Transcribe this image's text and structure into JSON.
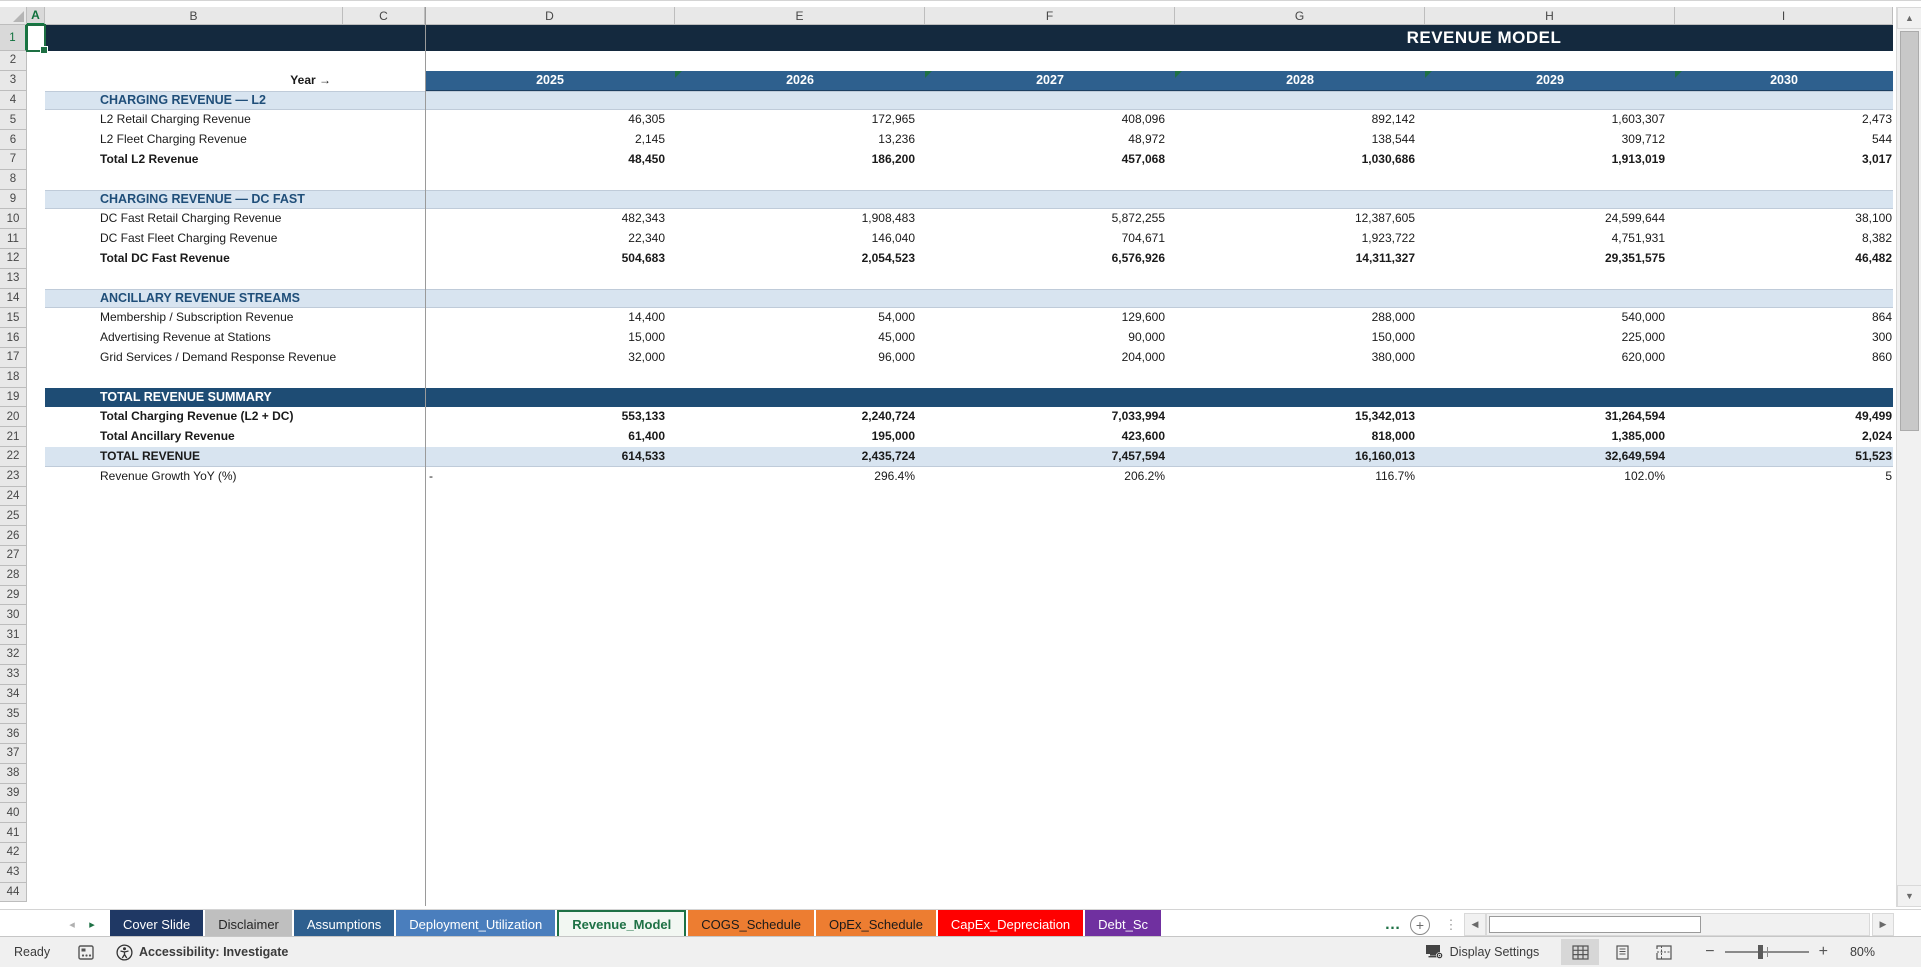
{
  "sheet": {
    "title": "REVENUE MODEL",
    "year_arrow_label": "Year →",
    "column_letters": [
      "A",
      "B",
      "C",
      "D",
      "E",
      "F",
      "G",
      "H",
      "I"
    ],
    "years": [
      "2025",
      "2026",
      "2027",
      "2028",
      "2029",
      "2030"
    ],
    "row_count": 44,
    "selected_cell": "A1",
    "rows": [
      {
        "n": 1,
        "type": "title"
      },
      {
        "n": 3,
        "type": "years"
      },
      {
        "n": 4,
        "type": "section",
        "label": "CHARGING REVENUE — L2"
      },
      {
        "n": 5,
        "type": "data",
        "label": "L2 Retail Charging Revenue",
        "values": [
          "46,305",
          "172,965",
          "408,096",
          "892,142",
          "1,603,307",
          "2,473"
        ]
      },
      {
        "n": 6,
        "type": "data",
        "label": "L2 Fleet Charging Revenue",
        "values": [
          "2,145",
          "13,236",
          "48,972",
          "138,544",
          "309,712",
          "544"
        ]
      },
      {
        "n": 7,
        "type": "total",
        "label": "Total L2 Revenue",
        "values": [
          "48,450",
          "186,200",
          "457,068",
          "1,030,686",
          "1,913,019",
          "3,017"
        ]
      },
      {
        "n": 9,
        "type": "section",
        "label": "CHARGING REVENUE — DC FAST"
      },
      {
        "n": 10,
        "type": "data",
        "label": "DC Fast Retail Charging Revenue",
        "values": [
          "482,343",
          "1,908,483",
          "5,872,255",
          "12,387,605",
          "24,599,644",
          "38,100"
        ]
      },
      {
        "n": 11,
        "type": "data",
        "label": "DC Fast Fleet Charging Revenue",
        "values": [
          "22,340",
          "146,040",
          "704,671",
          "1,923,722",
          "4,751,931",
          "8,382"
        ]
      },
      {
        "n": 12,
        "type": "total",
        "label": "Total DC Fast Revenue",
        "values": [
          "504,683",
          "2,054,523",
          "6,576,926",
          "14,311,327",
          "29,351,575",
          "46,482"
        ]
      },
      {
        "n": 14,
        "type": "section",
        "label": "ANCILLARY REVENUE STREAMS"
      },
      {
        "n": 15,
        "type": "data",
        "label": "Membership / Subscription Revenue",
        "values": [
          "14,400",
          "54,000",
          "129,600",
          "288,000",
          "540,000",
          "864"
        ]
      },
      {
        "n": 16,
        "type": "data",
        "label": "Advertising Revenue at Stations",
        "values": [
          "15,000",
          "45,000",
          "90,000",
          "150,000",
          "225,000",
          "300"
        ]
      },
      {
        "n": 17,
        "type": "data",
        "label": "Grid Services / Demand Response Revenue",
        "values": [
          "32,000",
          "96,000",
          "204,000",
          "380,000",
          "620,000",
          "860"
        ]
      },
      {
        "n": 19,
        "type": "summary",
        "label": "TOTAL REVENUE SUMMARY"
      },
      {
        "n": 20,
        "type": "total",
        "label": "Total Charging Revenue (L2 + DC)",
        "values": [
          "553,133",
          "2,240,724",
          "7,033,994",
          "15,342,013",
          "31,264,594",
          "49,499"
        ]
      },
      {
        "n": 21,
        "type": "total",
        "label": "Total Ancillary Revenue",
        "values": [
          "61,400",
          "195,000",
          "423,600",
          "818,000",
          "1,385,000",
          "2,024"
        ]
      },
      {
        "n": 22,
        "type": "grand",
        "label": "TOTAL REVENUE",
        "values": [
          "614,533",
          "2,435,724",
          "7,457,594",
          "16,160,013",
          "32,649,594",
          "51,523"
        ]
      },
      {
        "n": 23,
        "type": "data",
        "label": "Revenue Growth YoY (%)",
        "first_value_left": true,
        "values": [
          "-",
          "296.4%",
          "206.2%",
          "116.7%",
          "102.0%",
          "5"
        ]
      }
    ]
  },
  "colors": {
    "title_band": "#14293E",
    "year_band": "#2E608E",
    "summary_band": "#1E4C74",
    "light_band": "#D8E4F0",
    "section_text": "#1F4E79",
    "selection_green": "#1D6F42",
    "error_triangle_green": "#1E7145"
  },
  "tabs": {
    "nav_left_icon": "◂",
    "nav_right_icon": "▸",
    "sheets": [
      {
        "label": "Cover Slide",
        "bg": "#1F3864",
        "fg": "#FFFFFF",
        "active": false
      },
      {
        "label": "Disclaimer",
        "bg": "#BFBFBF",
        "fg": "#262626",
        "active": false
      },
      {
        "label": "Assumptions",
        "bg": "#2E5F8F",
        "fg": "#FFFFFF",
        "active": false
      },
      {
        "label": "Deployment_Utilization",
        "bg": "#4A7EBD",
        "fg": "#FFFFFF",
        "active": false
      },
      {
        "label": "Revenue_Model",
        "bg": "#F2F7F2",
        "fg": "#1E7145",
        "active": true
      },
      {
        "label": "COGS_Schedule",
        "bg": "#ED7D31",
        "fg": "#1A1A1A",
        "active": false
      },
      {
        "label": "OpEx_Schedule",
        "bg": "#ED7D31",
        "fg": "#1A1A1A",
        "active": false
      },
      {
        "label": "CapEx_Depreciation",
        "bg": "#FF0000",
        "fg": "#FFFFFF",
        "active": false
      },
      {
        "label": "Debt_Sc",
        "bg": "#7030A0",
        "fg": "#FFFFFF",
        "active": false,
        "clipped": true
      }
    ],
    "overflow_ellipsis": "…",
    "add_sheet_icon": "+"
  },
  "status_bar": {
    "mode": "Ready",
    "accessibility": "Accessibility: Investigate",
    "display_settings": "Display Settings",
    "zoom_level": "80%",
    "zoom_out": "−",
    "zoom_in": "+"
  }
}
